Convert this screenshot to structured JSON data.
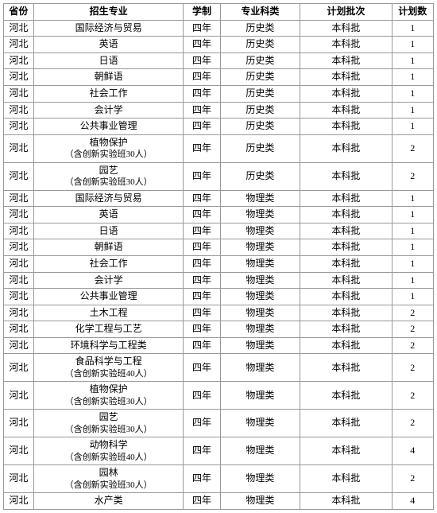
{
  "table": {
    "columns": [
      {
        "key": "province",
        "label": "省份",
        "class": "col-province"
      },
      {
        "key": "major",
        "label": "招生专业",
        "class": "col-major"
      },
      {
        "key": "duration",
        "label": "学制",
        "class": "col-duration"
      },
      {
        "key": "category",
        "label": "专业科类",
        "class": "col-category"
      },
      {
        "key": "batch",
        "label": "计划批次",
        "class": "col-batch"
      },
      {
        "key": "count",
        "label": "计划数",
        "class": "col-count"
      }
    ],
    "rows": [
      {
        "province": "河北",
        "major": "国际经济与贸易",
        "note": "",
        "duration": "四年",
        "category": "历史类",
        "batch": "本科批",
        "count": "1"
      },
      {
        "province": "河北",
        "major": "英语",
        "note": "",
        "duration": "四年",
        "category": "历史类",
        "batch": "本科批",
        "count": "1"
      },
      {
        "province": "河北",
        "major": "日语",
        "note": "",
        "duration": "四年",
        "category": "历史类",
        "batch": "本科批",
        "count": "1"
      },
      {
        "province": "河北",
        "major": "朝鲜语",
        "note": "",
        "duration": "四年",
        "category": "历史类",
        "batch": "本科批",
        "count": "1"
      },
      {
        "province": "河北",
        "major": "社会工作",
        "note": "",
        "duration": "四年",
        "category": "历史类",
        "batch": "本科批",
        "count": "1"
      },
      {
        "province": "河北",
        "major": "会计学",
        "note": "",
        "duration": "四年",
        "category": "历史类",
        "batch": "本科批",
        "count": "1"
      },
      {
        "province": "河北",
        "major": "公共事业管理",
        "note": "",
        "duration": "四年",
        "category": "历史类",
        "batch": "本科批",
        "count": "1"
      },
      {
        "province": "河北",
        "major": "植物保护",
        "note": "（含创新实验班30人）",
        "duration": "四年",
        "category": "历史类",
        "batch": "本科批",
        "count": "2"
      },
      {
        "province": "河北",
        "major": "园艺",
        "note": "（含创新实验班30人）",
        "duration": "四年",
        "category": "历史类",
        "batch": "本科批",
        "count": "2"
      },
      {
        "province": "河北",
        "major": "国际经济与贸易",
        "note": "",
        "duration": "四年",
        "category": "物理类",
        "batch": "本科批",
        "count": "1"
      },
      {
        "province": "河北",
        "major": "英语",
        "note": "",
        "duration": "四年",
        "category": "物理类",
        "batch": "本科批",
        "count": "1"
      },
      {
        "province": "河北",
        "major": "日语",
        "note": "",
        "duration": "四年",
        "category": "物理类",
        "batch": "本科批",
        "count": "1"
      },
      {
        "province": "河北",
        "major": "朝鲜语",
        "note": "",
        "duration": "四年",
        "category": "物理类",
        "batch": "本科批",
        "count": "1"
      },
      {
        "province": "河北",
        "major": "社会工作",
        "note": "",
        "duration": "四年",
        "category": "物理类",
        "batch": "本科批",
        "count": "1"
      },
      {
        "province": "河北",
        "major": "会计学",
        "note": "",
        "duration": "四年",
        "category": "物理类",
        "batch": "本科批",
        "count": "1"
      },
      {
        "province": "河北",
        "major": "公共事业管理",
        "note": "",
        "duration": "四年",
        "category": "物理类",
        "batch": "本科批",
        "count": "1"
      },
      {
        "province": "河北",
        "major": "土木工程",
        "note": "",
        "duration": "四年",
        "category": "物理类",
        "batch": "本科批",
        "count": "2"
      },
      {
        "province": "河北",
        "major": "化学工程与工艺",
        "note": "",
        "duration": "四年",
        "category": "物理类",
        "batch": "本科批",
        "count": "2"
      },
      {
        "province": "河北",
        "major": "环境科学与工程类",
        "note": "",
        "duration": "四年",
        "category": "物理类",
        "batch": "本科批",
        "count": "2"
      },
      {
        "province": "河北",
        "major": "食品科学与工程",
        "note": "（含创新实验班40人）",
        "duration": "四年",
        "category": "物理类",
        "batch": "本科批",
        "count": "2"
      },
      {
        "province": "河北",
        "major": "植物保护",
        "note": "（含创新实验班30人）",
        "duration": "四年",
        "category": "物理类",
        "batch": "本科批",
        "count": "2"
      },
      {
        "province": "河北",
        "major": "园艺",
        "note": "（含创新实验班30人）",
        "duration": "四年",
        "category": "物理类",
        "batch": "本科批",
        "count": "2"
      },
      {
        "province": "河北",
        "major": "动物科学",
        "note": "（含创新实验班40人）",
        "duration": "四年",
        "category": "物理类",
        "batch": "本科批",
        "count": "4"
      },
      {
        "province": "河北",
        "major": "园林",
        "note": "（含创新实验班30人）",
        "duration": "四年",
        "category": "物理类",
        "batch": "本科批",
        "count": "2"
      },
      {
        "province": "河北",
        "major": "水产类",
        "note": "",
        "duration": "四年",
        "category": "物理类",
        "batch": "本科批",
        "count": "4"
      }
    ],
    "border_color": "#999999",
    "text_color": "#000000",
    "background_color": "#ffffff",
    "font_family": "SimSun",
    "header_font_weight": "bold",
    "cell_fontsize": 12,
    "note_fontsize": 11
  }
}
